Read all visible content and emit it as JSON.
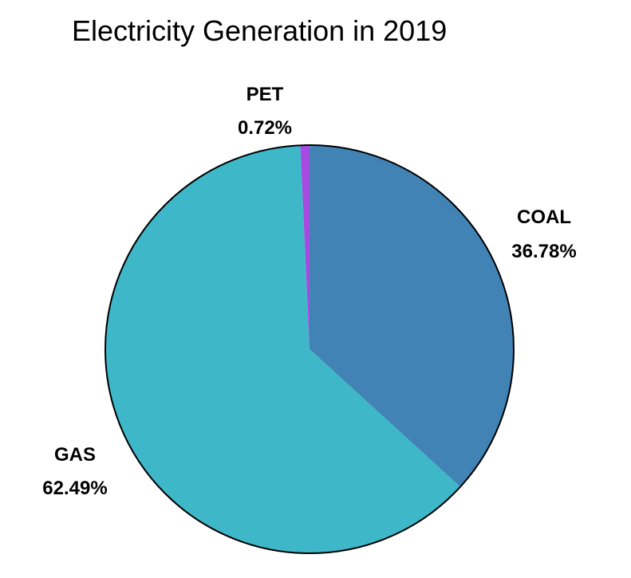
{
  "chart_data": {
    "type": "pie",
    "title": "Electricity Generation in 2019",
    "slices": [
      {
        "label": "COAL",
        "value": 36.78,
        "value_text": "36.78%",
        "color": "#4183B5"
      },
      {
        "label": "GAS",
        "value": 62.49,
        "value_text": "62.49%",
        "color": "#3EB8C8"
      },
      {
        "label": "PET",
        "value": 0.72,
        "value_text": "0.72%",
        "color": "#A64BE0"
      }
    ],
    "start_angle": "12 o'clock",
    "direction": "clockwise",
    "slice_outline_color": "#000000",
    "labels_placement": "outside"
  }
}
